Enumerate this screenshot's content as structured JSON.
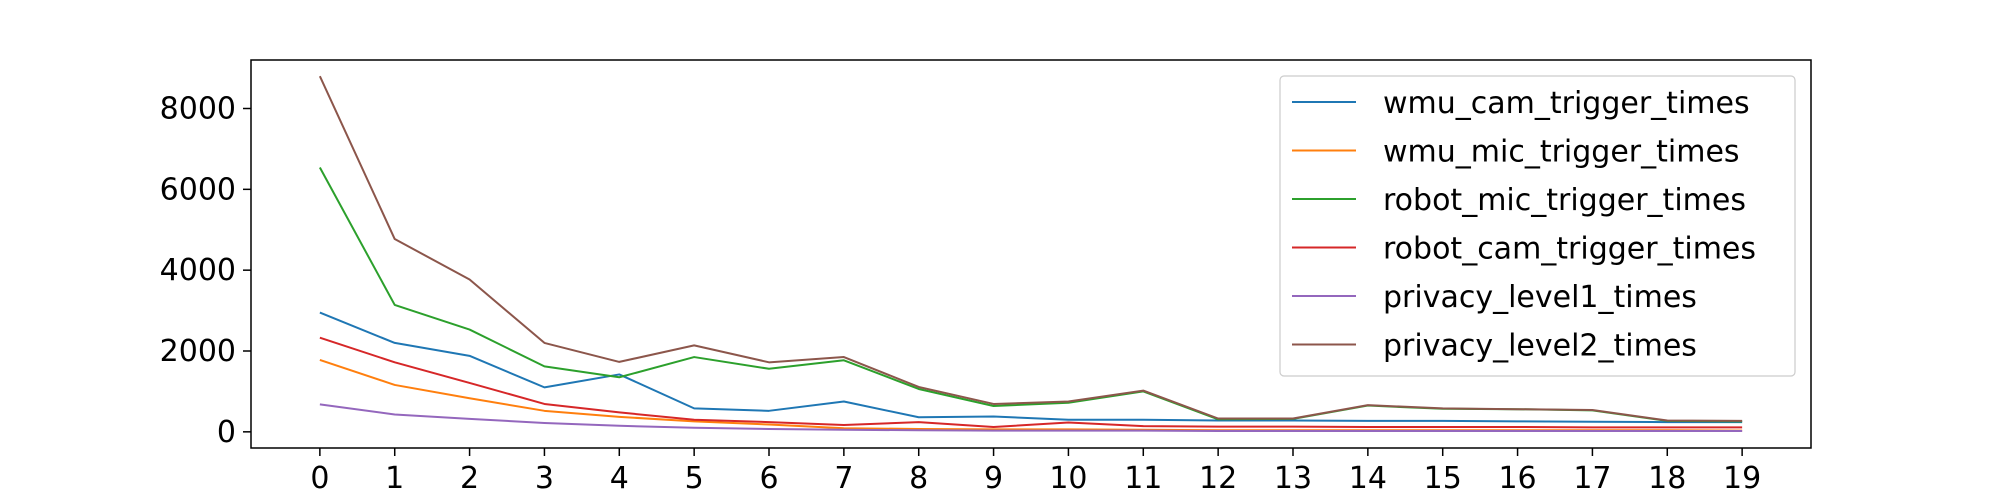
{
  "chart_data": {
    "type": "line",
    "x": [
      0,
      1,
      2,
      3,
      4,
      5,
      6,
      7,
      8,
      9,
      10,
      11,
      12,
      13,
      14,
      15,
      16,
      17,
      18,
      19
    ],
    "xticks": [
      "0",
      "1",
      "2",
      "3",
      "4",
      "5",
      "6",
      "7",
      "8",
      "9",
      "10",
      "11",
      "12",
      "13",
      "14",
      "15",
      "16",
      "17",
      "18",
      "19"
    ],
    "xlim": [
      -0.92,
      19.92
    ],
    "ylim": [
      -400,
      9200
    ],
    "yticks": [
      0,
      2000,
      4000,
      6000,
      8000
    ],
    "ytick_labels": [
      "0",
      "2000",
      "4000",
      "6000",
      "8000"
    ],
    "grid": false,
    "legend_position": "top-right",
    "series": [
      {
        "name": "wmu_cam_trigger_times",
        "color": "#1f77b4",
        "values": [
          2950,
          2200,
          1880,
          1100,
          1420,
          580,
          520,
          750,
          360,
          380,
          300,
          300,
          280,
          280,
          270,
          270,
          260,
          250,
          240,
          240
        ]
      },
      {
        "name": "wmu_mic_trigger_times",
        "color": "#ff7f0e",
        "values": [
          1780,
          1160,
          830,
          520,
          370,
          260,
          180,
          90,
          70,
          60,
          60,
          50,
          40,
          40,
          40,
          40,
          40,
          40,
          40,
          30
        ]
      },
      {
        "name": "robot_mic_trigger_times",
        "color": "#2ca02c",
        "values": [
          6540,
          3140,
          2530,
          1620,
          1350,
          1850,
          1560,
          1770,
          1060,
          640,
          720,
          1000,
          310,
          320,
          650,
          570,
          560,
          530,
          270,
          260
        ]
      },
      {
        "name": "robot_cam_trigger_times",
        "color": "#d62728",
        "values": [
          2330,
          1720,
          1210,
          690,
          480,
          300,
          240,
          170,
          240,
          120,
          230,
          140,
          130,
          130,
          120,
          120,
          120,
          110,
          110,
          110
        ]
      },
      {
        "name": "privacy_level1_times",
        "color": "#9467bd",
        "values": [
          680,
          430,
          320,
          220,
          150,
          100,
          70,
          50,
          40,
          30,
          30,
          30,
          20,
          20,
          20,
          20,
          20,
          20,
          20,
          20
        ]
      },
      {
        "name": "privacy_level2_times",
        "color": "#8c564b",
        "values": [
          8800,
          4770,
          3770,
          2200,
          1730,
          2140,
          1720,
          1850,
          1110,
          690,
          750,
          1020,
          330,
          330,
          660,
          580,
          560,
          540,
          280,
          270
        ]
      }
    ]
  }
}
